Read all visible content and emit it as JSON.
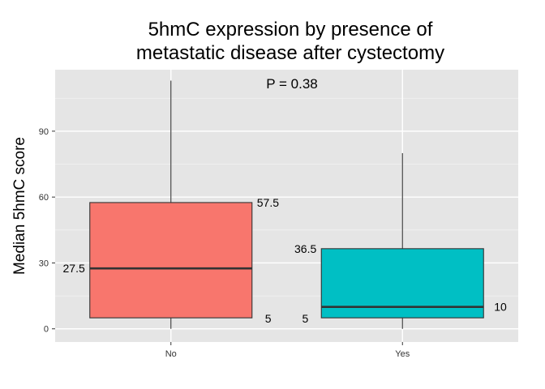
{
  "chart_data": {
    "type": "boxplot",
    "title_lines": [
      "5hmC expression by presence of",
      "metastatic disease after cystectomy"
    ],
    "xlabel": "",
    "ylabel": "Median 5hmC score",
    "ylim": [
      -6,
      118
    ],
    "yticks": [
      0,
      30,
      60,
      90
    ],
    "grid": true,
    "annotation": "P = 0.38",
    "categories": [
      "No",
      "Yes"
    ],
    "boxes": [
      {
        "category": "No",
        "min": 0,
        "q1": 5,
        "median": 27.5,
        "q3": 57.5,
        "max": 113,
        "color": "#F8766D",
        "labels": {
          "q1": "5",
          "median": "27.5",
          "q3": "57.5"
        }
      },
      {
        "category": "Yes",
        "min": 0,
        "q1": 5,
        "median": 10,
        "q3": 36.5,
        "max": 80,
        "color": "#00BFC4",
        "labels": {
          "q1": "5",
          "median": "10",
          "q3": "36.5"
        }
      }
    ]
  }
}
